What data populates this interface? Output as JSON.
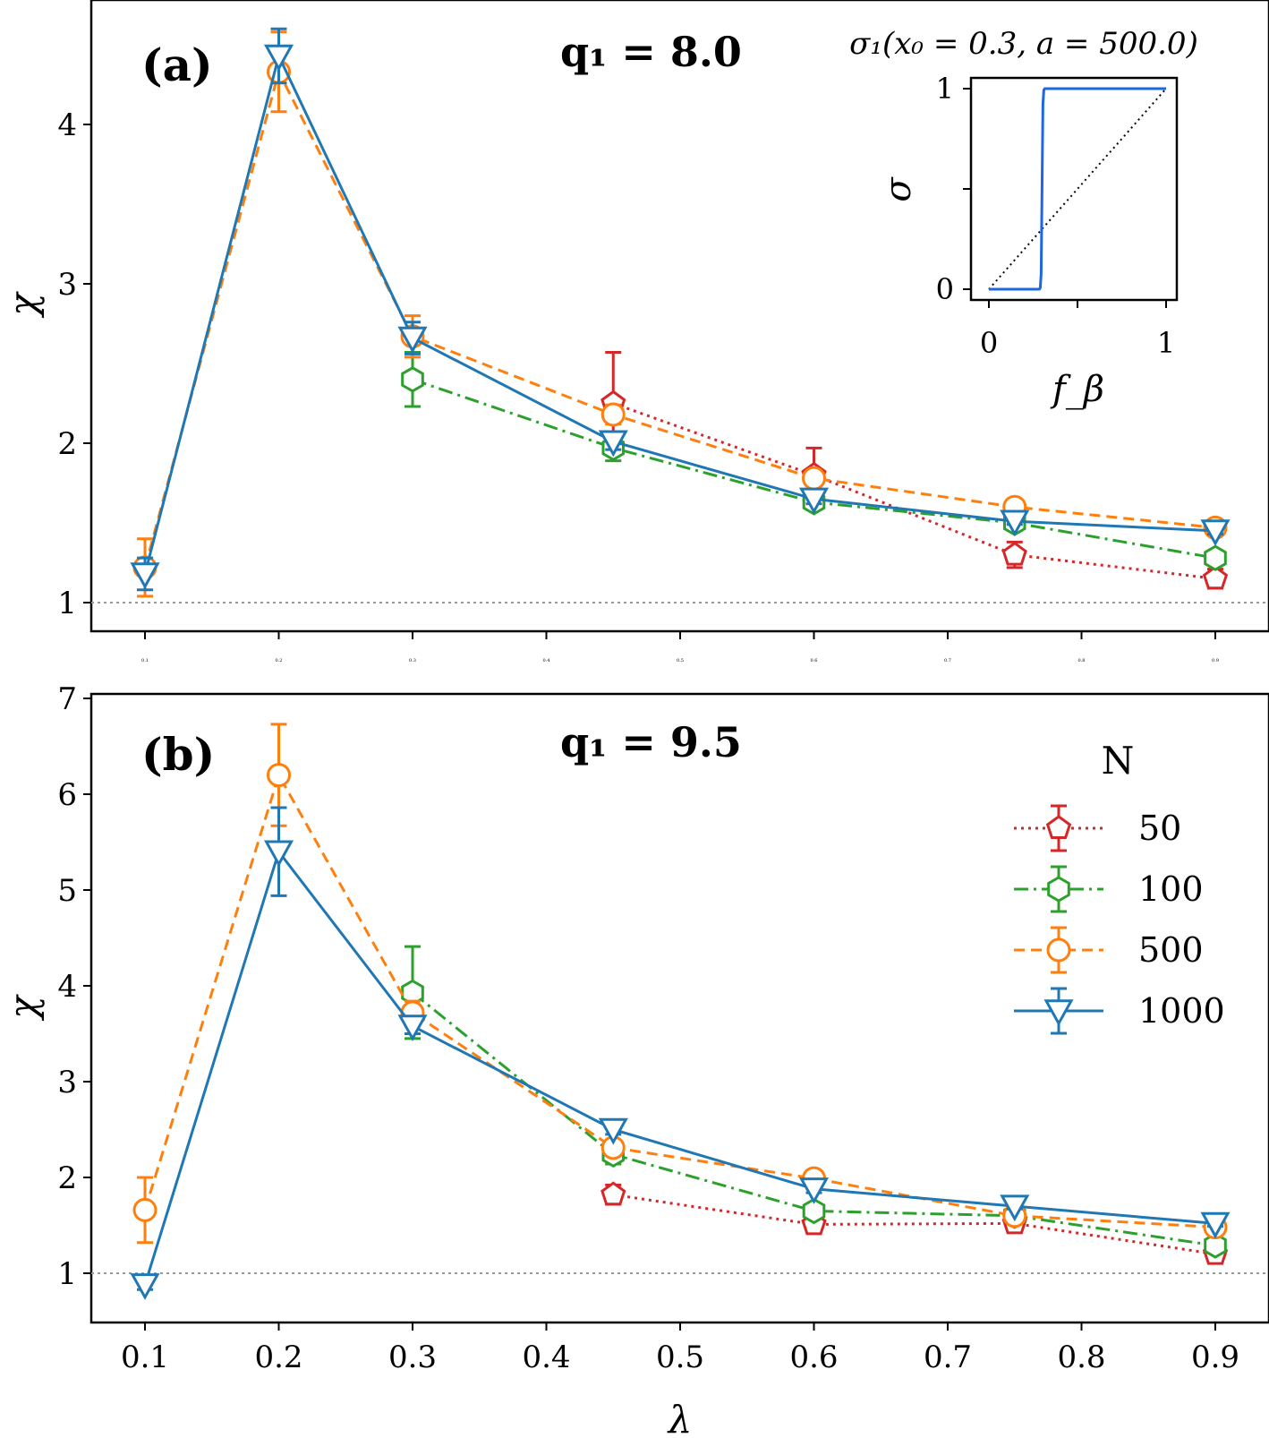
{
  "colors": {
    "N50": "#d62728",
    "N100": "#2ca02c",
    "N500": "#ff7f0e",
    "N1000": "#1f77b4",
    "reference_line": "#999999",
    "inset_sigma": "#1f66e5"
  },
  "chart_data": [
    {
      "type": "line",
      "panel_label": "(a)",
      "param_label": "q₁ = 8.0",
      "xlabel": "",
      "ylabel": "χ",
      "xlim": [
        0.06,
        0.93
      ],
      "ylim": [
        0.82,
        4.9
      ],
      "x_tick_labels": [
        "0.1",
        "0.2",
        "0.3",
        "0.4",
        "0.5",
        "0.6",
        "0.7",
        "0.8",
        "0.9"
      ],
      "y_ticks": [
        1,
        2,
        3,
        4
      ],
      "y_tick_labels": [
        "1",
        "2",
        "3",
        "4"
      ],
      "reference_line_y": 1,
      "series": [
        {
          "key": "N50",
          "name": "50",
          "style": "dotted",
          "marker": "pentagon",
          "x": [
            0.45,
            0.6,
            0.75,
            0.9
          ],
          "y": [
            2.25,
            1.8,
            1.3,
            1.15
          ],
          "err": [
            0.32,
            0.17,
            0.08,
            0.06
          ]
        },
        {
          "key": "N100",
          "name": "100",
          "style": "dashdot",
          "marker": "hexagon",
          "x": [
            0.3,
            0.45,
            0.6,
            0.75,
            0.9
          ],
          "y": [
            2.4,
            1.97,
            1.63,
            1.5,
            1.28
          ],
          "err": [
            0.17,
            0.08,
            0.04,
            0.04,
            0.04
          ]
        },
        {
          "key": "N500",
          "name": "500",
          "style": "dashed",
          "marker": "circle",
          "x": [
            0.1,
            0.2,
            0.3,
            0.45,
            0.6,
            0.75,
            0.9
          ],
          "y": [
            1.22,
            4.33,
            2.67,
            2.18,
            1.78,
            1.6,
            1.47
          ],
          "err": [
            0.18,
            0.25,
            0.13,
            0.06,
            0.04,
            0.03,
            0.03
          ]
        },
        {
          "key": "N1000",
          "name": "1000",
          "style": "solid",
          "marker": "triangle-down",
          "x": [
            0.1,
            0.2,
            0.3,
            0.45,
            0.6,
            0.75,
            0.9
          ],
          "y": [
            1.18,
            4.43,
            2.66,
            2.01,
            1.65,
            1.51,
            1.45
          ],
          "err": [
            0.1,
            0.17,
            0.1,
            0.05,
            0.03,
            0.02,
            0.02
          ]
        }
      ],
      "inset": {
        "title": "σ₁(x₀ = 0.3, a = 500.0)",
        "xlabel": "f_β",
        "ylabel": "σ",
        "x_tick_labels": [
          "0",
          "1"
        ],
        "y_tick_labels": [
          "0",
          "1"
        ],
        "step_x0": 0.3,
        "steepness": 500.0
      }
    },
    {
      "type": "line",
      "panel_label": "(b)",
      "param_label": "q₁ = 9.5",
      "xlabel": "λ",
      "ylabel": "χ",
      "xlim": [
        0.06,
        0.93
      ],
      "ylim": [
        0.55,
        7.0
      ],
      "x_ticks": [
        0.1,
        0.2,
        0.3,
        0.4,
        0.5,
        0.6,
        0.7,
        0.8,
        0.9
      ],
      "x_tick_labels": [
        "0.1",
        "0.2",
        "0.3",
        "0.4",
        "0.5",
        "0.6",
        "0.7",
        "0.8",
        "0.9"
      ],
      "y_ticks": [
        1,
        2,
        3,
        4,
        5,
        6,
        7
      ],
      "y_tick_labels": [
        "1",
        "2",
        "3",
        "4",
        "5",
        "6",
        "7"
      ],
      "reference_line_y": 1,
      "legend": {
        "title": "N",
        "position": "right",
        "entries": [
          "50",
          "100",
          "500",
          "1000"
        ]
      },
      "series": [
        {
          "key": "N50",
          "name": "50",
          "style": "dotted",
          "marker": "pentagon",
          "x": [
            0.45,
            0.6,
            0.75,
            0.9
          ],
          "y": [
            1.82,
            1.51,
            1.52,
            1.2
          ],
          "err": [
            0.1,
            0.04,
            0.03,
            0.03
          ]
        },
        {
          "key": "N100",
          "name": "100",
          "style": "dashdot",
          "marker": "hexagon",
          "x": [
            0.3,
            0.45,
            0.6,
            0.75,
            0.9
          ],
          "y": [
            3.93,
            2.24,
            1.65,
            1.6,
            1.29
          ],
          "err": [
            0.48,
            0.1,
            0.05,
            0.04,
            0.04
          ]
        },
        {
          "key": "N500",
          "name": "500",
          "style": "dashed",
          "marker": "circle",
          "x": [
            0.1,
            0.2,
            0.3,
            0.45,
            0.6,
            0.75,
            0.9
          ],
          "y": [
            1.66,
            6.2,
            3.72,
            2.31,
            1.99,
            1.6,
            1.48
          ],
          "err": [
            0.34,
            0.53,
            0.12,
            0.07,
            0.05,
            0.03,
            0.03
          ]
        },
        {
          "key": "N1000",
          "name": "1000",
          "style": "solid",
          "marker": "triangle-down",
          "x": [
            0.1,
            0.2,
            0.3,
            0.45,
            0.6,
            0.75,
            0.9
          ],
          "y": [
            0.88,
            5.4,
            3.58,
            2.5,
            1.88,
            1.7,
            1.52
          ],
          "err": [
            0.05,
            0.46,
            0.08,
            0.05,
            0.04,
            0.03,
            0.03
          ]
        }
      ]
    }
  ]
}
